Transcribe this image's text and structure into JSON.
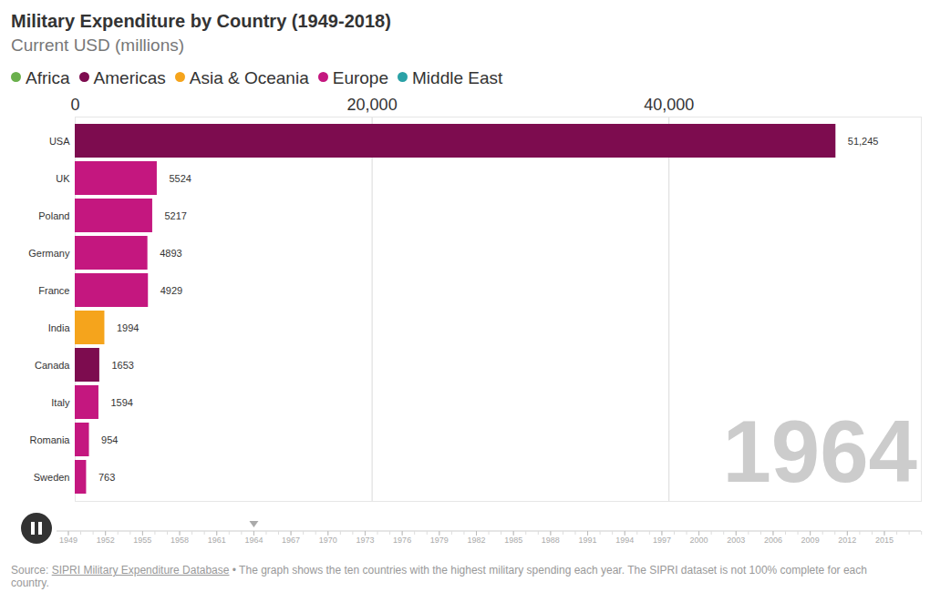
{
  "chart_data": {
    "type": "bar",
    "orientation": "horizontal",
    "title": "Military Expenditure by Country (1949-2018)",
    "subtitle": "Current USD (millions)",
    "categories": [
      "USA",
      "UK",
      "Poland",
      "Germany",
      "France",
      "India",
      "Canada",
      "Italy",
      "Romania",
      "Sweden"
    ],
    "series": [
      {
        "name": "Africa",
        "color": "#6ab04c",
        "values": [
          null,
          null,
          null,
          null,
          null,
          null,
          null,
          null,
          null,
          null
        ],
        "value_labels": [
          null,
          null,
          null,
          null,
          null,
          null,
          null,
          null,
          null,
          null
        ]
      },
      {
        "name": "Americas",
        "color": "#7d0c4f",
        "values": [
          51245,
          null,
          null,
          null,
          null,
          null,
          1653,
          null,
          null,
          null
        ],
        "value_labels": [
          "51,245",
          null,
          null,
          null,
          null,
          null,
          "1653",
          null,
          null,
          null
        ]
      },
      {
        "name": "Asia & Oceania",
        "color": "#f5a41c",
        "values": [
          null,
          null,
          null,
          null,
          null,
          1994,
          null,
          null,
          null,
          null
        ],
        "value_labels": [
          null,
          null,
          null,
          null,
          null,
          "1994",
          null,
          null,
          null,
          null
        ]
      },
      {
        "name": "Europe",
        "color": "#c4177f",
        "values": [
          null,
          5524,
          5217,
          4893,
          4929,
          null,
          null,
          1594,
          954,
          763
        ],
        "value_labels": [
          null,
          "5524",
          "5217",
          "4893",
          "4929",
          null,
          null,
          "1594",
          "954",
          "763"
        ]
      },
      {
        "name": "Middle East",
        "color": "#2aa1a6",
        "values": [
          null,
          null,
          null,
          null,
          null,
          null,
          null,
          null,
          null,
          null
        ],
        "value_labels": [
          null,
          null,
          null,
          null,
          null,
          null,
          null,
          null,
          null,
          null
        ]
      }
    ],
    "xlim": [
      0,
      57000
    ],
    "xticks": [
      0,
      {
        "value": 20000,
        "label": "20,000"
      },
      {
        "value": 40000,
        "label": "40,000"
      }
    ],
    "grid": true,
    "data_labels": true,
    "annotations": [
      "1964"
    ],
    "timeline": {
      "ticks": [
        1949,
        1952,
        1955,
        1958,
        1961,
        1964,
        1967,
        1970,
        1973,
        1976,
        1979,
        1982,
        1985,
        1988,
        1991,
        1994,
        1997,
        2000,
        2003,
        2006,
        2009,
        2012,
        2015
      ],
      "value": 1964
    },
    "caption": {
      "prefix": "Source: ",
      "link": "SIPRI Military Expenditure Database",
      "text": " • The graph shows the ten countries with the highest military spending each year. The SIPRI dataset is not 100% complete for each country."
    }
  }
}
